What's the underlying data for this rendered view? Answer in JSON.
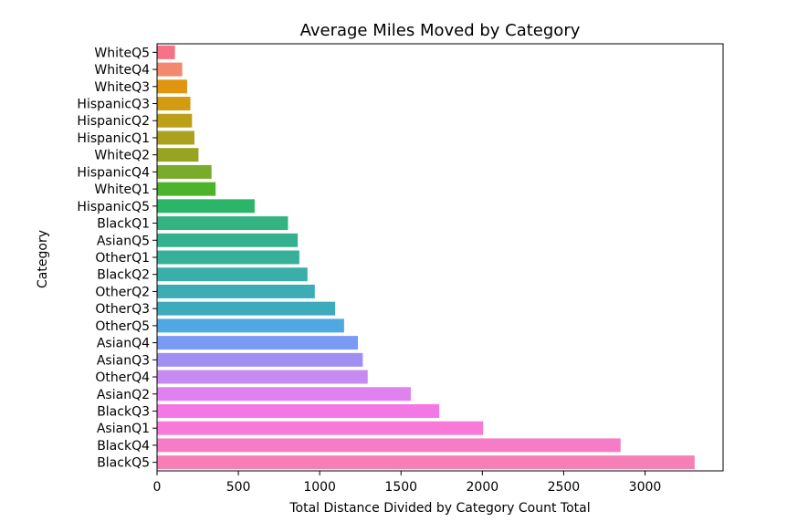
{
  "chart_data": {
    "type": "bar",
    "orientation": "horizontal",
    "title": "Average Miles Moved by Category",
    "xlabel": "Total Distance Divided by Category Count Total",
    "ylabel": "Category",
    "xlim": [
      0,
      3480
    ],
    "xticks": [
      0,
      500,
      1000,
      1500,
      2000,
      2500,
      3000
    ],
    "grid": false,
    "legend": "none",
    "categories": [
      "WhiteQ5",
      "WhiteQ4",
      "WhiteQ3",
      "HispanicQ3",
      "HispanicQ2",
      "HispanicQ1",
      "WhiteQ2",
      "HispanicQ4",
      "WhiteQ1",
      "HispanicQ5",
      "BlackQ1",
      "AsianQ5",
      "OtherQ1",
      "BlackQ2",
      "OtherQ2",
      "OtherQ3",
      "OtherQ5",
      "AsianQ4",
      "AsianQ3",
      "OtherQ4",
      "AsianQ2",
      "BlackQ3",
      "AsianQ1",
      "BlackQ4",
      "BlackQ5"
    ],
    "values": [
      110,
      155,
      185,
      205,
      215,
      230,
      255,
      335,
      360,
      600,
      805,
      865,
      875,
      925,
      970,
      1095,
      1150,
      1235,
      1265,
      1295,
      1560,
      1735,
      2005,
      2850,
      3305
    ],
    "colors": [
      "#f77189",
      "#f2896e",
      "#e1950f",
      "#d29b12",
      "#bda019",
      "#aaa21f",
      "#96a422",
      "#7aab2a",
      "#4db22c",
      "#2bb568",
      "#33b381",
      "#34b28f",
      "#36b099",
      "#3aafa9",
      "#3cadb5",
      "#3eabbd",
      "#50a8e3",
      "#7a9bf3",
      "#a08ef2",
      "#c68af1",
      "#df82f0",
      "#f477e6",
      "#f77ad8",
      "#f77cc8",
      "#f67fb5"
    ]
  }
}
